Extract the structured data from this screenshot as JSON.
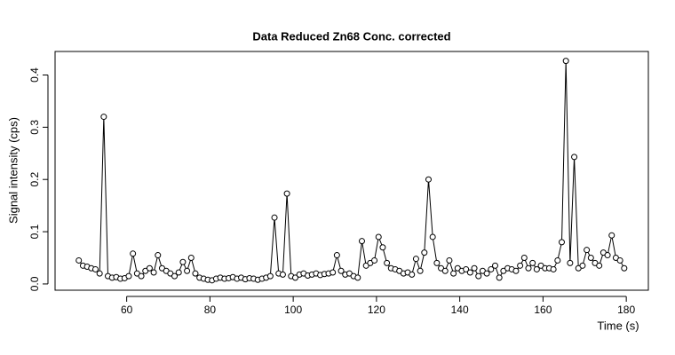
{
  "chart_data": {
    "type": "line",
    "title": "Data Reduced Zn68 Conc. corrected",
    "x_label": "Time (s)",
    "y_label": "Signal intensity (cps)",
    "x": [
      48.5,
      49.5,
      50.5,
      51.5,
      52.5,
      53.5,
      54.5,
      55.5,
      56.5,
      57.5,
      58.5,
      59.5,
      60.5,
      61.5,
      62.5,
      63.5,
      64.5,
      65.5,
      66.5,
      67.5,
      68.5,
      69.5,
      70.5,
      71.5,
      72.5,
      73.5,
      74.5,
      75.5,
      76.5,
      77.5,
      78.5,
      79.5,
      80.5,
      81.5,
      82.5,
      83.5,
      84.5,
      85.5,
      86.5,
      87.5,
      88.5,
      89.5,
      90.5,
      91.5,
      92.5,
      93.5,
      94.5,
      95.5,
      96.5,
      97.5,
      98.5,
      99.5,
      100.5,
      101.5,
      102.5,
      103.5,
      104.5,
      105.5,
      106.5,
      107.5,
      108.5,
      109.5,
      110.5,
      111.5,
      112.5,
      113.5,
      114.5,
      115.5,
      116.5,
      117.5,
      118.5,
      119.5,
      120.5,
      121.5,
      122.5,
      123.5,
      124.5,
      125.5,
      126.5,
      127.5,
      128.5,
      129.5,
      130.5,
      131.5,
      132.5,
      133.5,
      134.5,
      135.5,
      136.5,
      137.5,
      138.5,
      139.5,
      140.5,
      141.5,
      142.5,
      143.5,
      144.5,
      145.5,
      146.5,
      147.5,
      148.5,
      149.5,
      150.5,
      151.5,
      152.5,
      153.5,
      154.5,
      155.5,
      156.5,
      157.5,
      158.5,
      159.5,
      160.5,
      161.5,
      162.5,
      163.5,
      164.5,
      165.5,
      166.5,
      167.5,
      168.5,
      169.5,
      170.5,
      171.5,
      172.5,
      173.5,
      174.5,
      175.5,
      176.5,
      177.5,
      178.5,
      179.5
    ],
    "series": [
      {
        "color": "#000000",
        "values": [
          0.045,
          0.035,
          0.033,
          0.03,
          0.028,
          0.02,
          0.32,
          0.015,
          0.012,
          0.013,
          0.01,
          0.011,
          0.015,
          0.058,
          0.02,
          0.015,
          0.025,
          0.03,
          0.022,
          0.055,
          0.03,
          0.025,
          0.02,
          0.015,
          0.022,
          0.042,
          0.025,
          0.05,
          0.02,
          0.012,
          0.01,
          0.008,
          0.007,
          0.01,
          0.012,
          0.01,
          0.011,
          0.013,
          0.01,
          0.012,
          0.009,
          0.011,
          0.01,
          0.008,
          0.01,
          0.012,
          0.015,
          0.127,
          0.02,
          0.018,
          0.173,
          0.015,
          0.012,
          0.018,
          0.02,
          0.016,
          0.018,
          0.02,
          0.017,
          0.019,
          0.02,
          0.022,
          0.055,
          0.025,
          0.018,
          0.02,
          0.015,
          0.012,
          0.082,
          0.035,
          0.04,
          0.045,
          0.09,
          0.07,
          0.04,
          0.03,
          0.028,
          0.025,
          0.02,
          0.022,
          0.018,
          0.048,
          0.025,
          0.06,
          0.2,
          0.09,
          0.04,
          0.03,
          0.025,
          0.045,
          0.02,
          0.03,
          0.025,
          0.028,
          0.022,
          0.03,
          0.015,
          0.025,
          0.02,
          0.028,
          0.035,
          0.012,
          0.025,
          0.03,
          0.028,
          0.025,
          0.035,
          0.05,
          0.03,
          0.04,
          0.028,
          0.035,
          0.03,
          0.03,
          0.028,
          0.045,
          0.08,
          0.427,
          0.04,
          0.243,
          0.03,
          0.035,
          0.065,
          0.05,
          0.04,
          0.035,
          0.06,
          0.055,
          0.093,
          0.05,
          0.045,
          0.03
        ]
      }
    ],
    "xlim": [
      42.8,
      185.3
    ],
    "ylim": [
      -0.012,
      0.445
    ],
    "xticks": [
      60,
      80,
      100,
      120,
      140,
      160,
      180
    ],
    "yticks": [
      {
        "value": 0,
        "label": "0.0"
      },
      0.1,
      0.2,
      0.3,
      0.4
    ]
  }
}
